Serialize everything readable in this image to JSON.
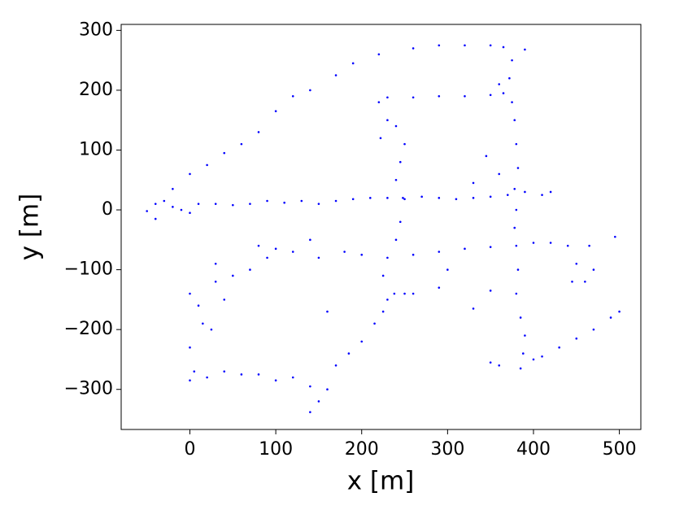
{
  "chart_data": {
    "type": "scatter",
    "xlabel": "x [m]",
    "ylabel": "y [m]",
    "color": "#0000ff",
    "xlim": [
      -80,
      525
    ],
    "ylim": [
      -367,
      310
    ],
    "xticks": [
      0,
      100,
      200,
      300,
      400,
      500
    ],
    "yticks": [
      {
        "value": -300,
        "label": "−300"
      },
      {
        "value": -200,
        "label": "−200"
      },
      {
        "value": -100,
        "label": "−100"
      },
      0,
      100,
      200,
      300
    ],
    "x": [
      -50,
      -40,
      -30,
      -20,
      -10,
      0,
      10,
      30,
      50,
      70,
      90,
      110,
      130,
      150,
      170,
      190,
      210,
      230,
      250,
      270,
      290,
      310,
      330,
      350,
      370,
      390,
      410,
      420,
      -40,
      -20,
      0,
      20,
      40,
      60,
      80,
      100,
      120,
      140,
      170,
      190,
      220,
      260,
      290,
      320,
      350,
      365,
      390,
      375,
      372,
      375,
      378,
      380,
      382,
      378,
      380,
      378,
      380,
      382,
      380,
      385,
      390,
      388,
      385,
      230,
      260,
      290,
      320,
      350,
      365,
      360,
      220,
      230,
      222,
      240,
      250,
      245,
      240,
      248,
      245,
      240,
      230,
      225,
      238,
      250,
      260,
      80,
      100,
      120,
      150,
      180,
      200,
      260,
      290,
      320,
      350,
      400,
      420,
      0,
      10,
      15,
      25,
      0,
      5,
      0,
      20,
      40,
      60,
      80,
      100,
      120,
      140,
      160,
      150,
      140,
      170,
      185,
      200,
      215,
      225,
      230,
      140,
      160,
      30,
      50,
      70,
      90,
      40,
      30,
      440,
      450,
      460,
      465,
      470,
      445,
      400,
      410,
      430,
      450,
      470,
      490,
      500,
      495,
      350,
      360,
      330,
      300,
      290,
      350,
      345,
      360,
      330
    ],
    "y": [
      -2,
      -15,
      15,
      5,
      0,
      -5,
      10,
      10,
      8,
      10,
      15,
      12,
      15,
      10,
      15,
      18,
      20,
      20,
      18,
      22,
      20,
      18,
      20,
      22,
      25,
      30,
      25,
      30,
      10,
      35,
      60,
      75,
      95,
      110,
      130,
      165,
      190,
      200,
      225,
      245,
      260,
      270,
      275,
      275,
      275,
      272,
      268,
      250,
      220,
      180,
      150,
      110,
      70,
      35,
      0,
      -30,
      -60,
      -100,
      -140,
      -180,
      -210,
      -240,
      -265,
      188,
      188,
      190,
      190,
      192,
      195,
      210,
      180,
      150,
      120,
      140,
      110,
      80,
      50,
      20,
      -20,
      -50,
      -80,
      -110,
      -140,
      -140,
      -140,
      -60,
      -65,
      -70,
      -80,
      -70,
      -75,
      -75,
      -70,
      -65,
      -62,
      -55,
      -55,
      -140,
      -160,
      -190,
      -200,
      -230,
      -270,
      -285,
      -280,
      -270,
      -275,
      -275,
      -285,
      -280,
      -295,
      -300,
      -320,
      -338,
      -260,
      -240,
      -220,
      -190,
      -170,
      -150,
      -50,
      -170,
      -120,
      -110,
      -100,
      -80,
      -150,
      -90,
      -60,
      -90,
      -120,
      -60,
      -100,
      -120,
      -250,
      -245,
      -230,
      -215,
      -200,
      -180,
      -170,
      -45,
      -255,
      -260,
      -165,
      -100,
      -130,
      -135,
      90,
      60,
      45
    ]
  }
}
